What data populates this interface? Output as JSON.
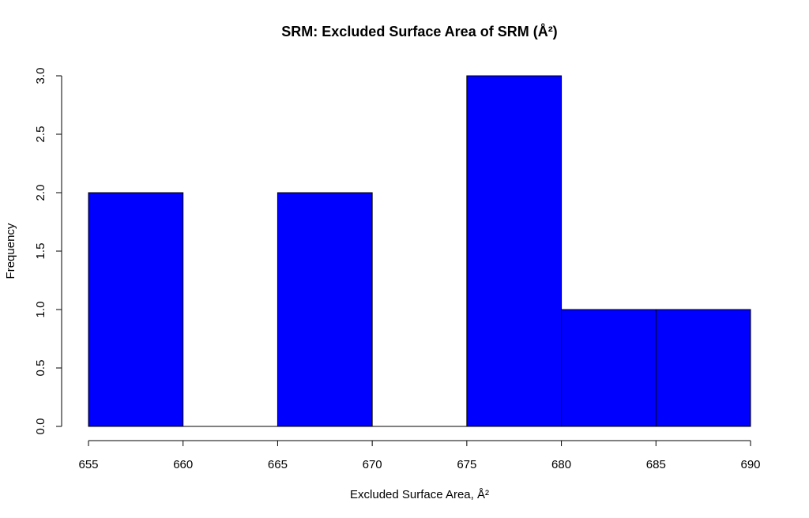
{
  "chart_data": {
    "type": "bar",
    "subtype": "histogram",
    "title": "SRM: Excluded Surface Area of SRM (Å²)",
    "xlabel": "Excluded Surface Area, Å²",
    "ylabel": "Frequency",
    "bins": [
      {
        "start": 655,
        "end": 660,
        "count": 2
      },
      {
        "start": 660,
        "end": 665,
        "count": 0
      },
      {
        "start": 665,
        "end": 670,
        "count": 2
      },
      {
        "start": 670,
        "end": 675,
        "count": 0
      },
      {
        "start": 675,
        "end": 680,
        "count": 3
      },
      {
        "start": 680,
        "end": 685,
        "count": 1
      },
      {
        "start": 685,
        "end": 690,
        "count": 1
      }
    ],
    "xlim": [
      655,
      690
    ],
    "ylim": [
      0,
      3
    ],
    "x_ticks": [
      "655",
      "660",
      "665",
      "670",
      "675",
      "680",
      "685",
      "690"
    ],
    "y_ticks": [
      "0.0",
      "0.5",
      "1.0",
      "1.5",
      "2.0",
      "2.5",
      "3.0"
    ],
    "bar_color": "#0000ff",
    "grid": false
  }
}
